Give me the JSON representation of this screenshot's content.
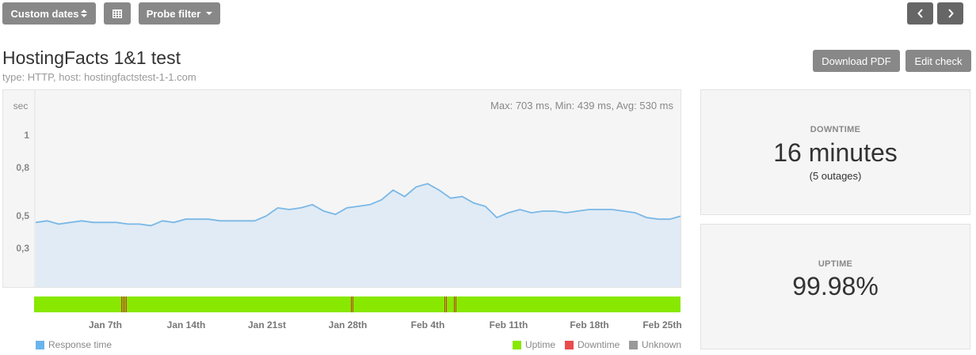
{
  "toolbar": {
    "custom_dates_label": "Custom dates",
    "calendar_icon": "calendar-icon",
    "probe_filter_label": "Probe filter",
    "prev_icon": "chevron-left-icon",
    "next_icon": "chevron-right-icon"
  },
  "header": {
    "title": "HostingFacts 1&1 test",
    "subtitle": "type: HTTP, host: hostingfactstest-1-1.com",
    "download_pdf_label": "Download PDF",
    "edit_check_label": "Edit check"
  },
  "chart": {
    "stats_text": "Max: 703 ms, Min: 439 ms, Avg: 530 ms",
    "colors": {
      "line": "#7ab8e6",
      "fill": "#e0ebf5",
      "uptime": "#88e800",
      "downtime": "#e84c4c",
      "unknown": "#999999",
      "response": "#6ab4ec"
    }
  },
  "chart_data": {
    "type": "area",
    "ylabel": "sec",
    "y_ticks": [
      "1",
      "0,8",
      "0,5",
      "0,3"
    ],
    "y_tick_values": [
      1.0,
      0.8,
      0.5,
      0.3
    ],
    "x_ticks": [
      "Jan 7th",
      "Jan 14th",
      "Jan 21st",
      "Jan 28th",
      "Feb 4th",
      "Feb 11th",
      "Feb 18th",
      "Feb 25th"
    ],
    "series": [
      {
        "name": "Response time",
        "values": [
          0.46,
          0.47,
          0.45,
          0.46,
          0.47,
          0.46,
          0.46,
          0.46,
          0.45,
          0.45,
          0.44,
          0.47,
          0.46,
          0.48,
          0.48,
          0.48,
          0.47,
          0.47,
          0.47,
          0.47,
          0.5,
          0.55,
          0.54,
          0.55,
          0.57,
          0.53,
          0.51,
          0.55,
          0.56,
          0.57,
          0.6,
          0.66,
          0.62,
          0.68,
          0.7,
          0.66,
          0.61,
          0.62,
          0.58,
          0.56,
          0.49,
          0.52,
          0.54,
          0.52,
          0.53,
          0.53,
          0.52,
          0.53,
          0.54,
          0.54,
          0.54,
          0.53,
          0.52,
          0.49,
          0.48,
          0.48,
          0.5
        ]
      }
    ],
    "outages": [
      0.135,
      0.14,
      0.49,
      0.635,
      0.65
    ]
  },
  "legend": {
    "response_time": "Response time",
    "uptime": "Uptime",
    "downtime": "Downtime",
    "unknown": "Unknown"
  },
  "downtime_card": {
    "label": "DOWNTIME",
    "value": "16 minutes",
    "sub": "(5 outages)"
  },
  "uptime_card": {
    "label": "UPTIME",
    "value": "99.98%"
  }
}
